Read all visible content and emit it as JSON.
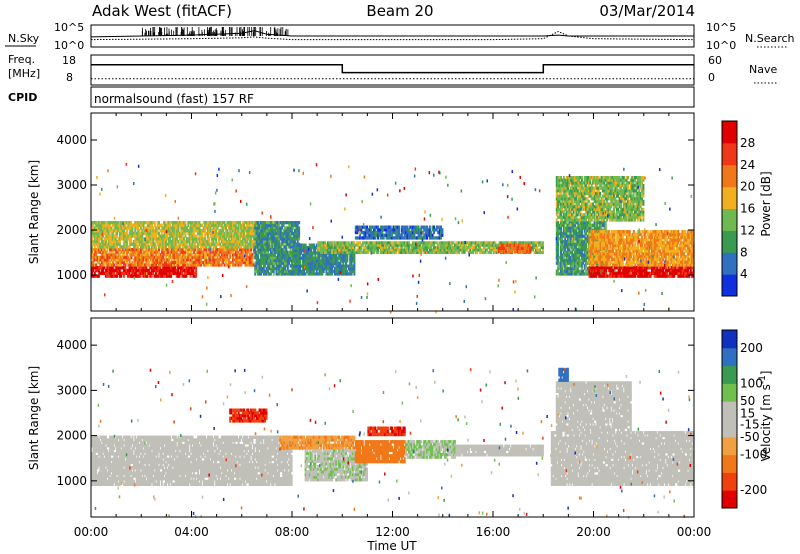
{
  "header": {
    "station": "Adak West (fitACF)",
    "beam": "Beam 20",
    "date": "03/Mar/2014"
  },
  "left_labels": {
    "nsky": "N.Sky",
    "freq_line1": "Freq.",
    "freq_line2": "[MHz]",
    "cpid": "CPID"
  },
  "right_labels": {
    "nsearch": "N.Search",
    "nave": "Nave"
  },
  "cpid_text": "normalsound (fast) 157 RF",
  "x_axis": {
    "label": "Time UT",
    "ticks": [
      "00:00",
      "04:00",
      "08:00",
      "12:00",
      "16:00",
      "20:00",
      "00:00"
    ]
  },
  "colors": {
    "ground_scatter": "#c0c0b8",
    "power_scale": [
      "#1030e0",
      "#3070c0",
      "#3a9a50",
      "#70b850",
      "#f0b020",
      "#f07818",
      "#f03818",
      "#e00000"
    ],
    "velocity_scale": [
      "#e00000",
      "#f04010",
      "#f07818",
      "#f0a040",
      "#c0c0b8",
      "#c0c0b8",
      "#70c050",
      "#3a9a50",
      "#3070c0",
      "#1030c0"
    ]
  },
  "chart_data": [
    {
      "type": "line",
      "panel": "noise",
      "left_axis": {
        "label": "N.Sky",
        "ticks": [
          "10^5",
          "10^0"
        ]
      },
      "right_axis": {
        "label": "N.Search",
        "ticks": [
          "10^5",
          "10^0"
        ]
      },
      "x": [
        0,
        2,
        4,
        6,
        6.5,
        7,
        8,
        10,
        12,
        14,
        16,
        18,
        18.6,
        19,
        20,
        22,
        24
      ],
      "series": [
        {
          "name": "N.Sky",
          "values": [
            0.45,
            0.5,
            0.55,
            0.65,
            0.8,
            0.6,
            0.5,
            0.5,
            0.5,
            0.5,
            0.5,
            0.5,
            0.55,
            0.5,
            0.5,
            0.5,
            0.5
          ]
        },
        {
          "name": "N.Search",
          "values": [
            0.3,
            0.32,
            0.35,
            0.4,
            0.45,
            0.38,
            0.3,
            0.3,
            0.3,
            0.3,
            0.3,
            0.35,
            0.75,
            0.5,
            0.35,
            0.32,
            0.3
          ]
        }
      ]
    },
    {
      "type": "line",
      "panel": "frequency",
      "left_axis": {
        "label": "Freq. [MHz]",
        "ticks": [
          18,
          8
        ]
      },
      "right_axis": {
        "label": "Nave",
        "ticks": [
          60,
          0
        ]
      },
      "x": [
        0,
        10,
        10,
        18,
        18,
        24
      ],
      "series": [
        {
          "name": "Freq.",
          "values": [
            15,
            15,
            12,
            12,
            15,
            15
          ]
        },
        {
          "name": "Nave",
          "values": [
            10,
            10,
            10,
            10,
            10,
            10
          ]
        }
      ]
    },
    {
      "type": "heatmap",
      "panel": "power",
      "ylabel": "Slant Range [km]",
      "xlabel": "Time UT",
      "xlim": [
        0,
        24
      ],
      "ylim": [
        200,
        4600
      ],
      "yticks": [
        1000,
        2000,
        3000,
        4000
      ],
      "colorbar": {
        "label": "Power [dB]",
        "ticks": [
          4,
          8,
          12,
          16,
          20,
          24,
          28
        ],
        "range": [
          0,
          32
        ]
      },
      "regions": [
        {
          "t": [
            0,
            4.2
          ],
          "r": [
            950,
            1200
          ],
          "value": 30
        },
        {
          "t": [
            0,
            6.5
          ],
          "r": [
            1200,
            1600
          ],
          "value": 22
        },
        {
          "t": [
            0,
            7.5
          ],
          "r": [
            1600,
            2200
          ],
          "value": 16
        },
        {
          "t": [
            6.5,
            8.3
          ],
          "r": [
            1000,
            2200
          ],
          "value": 9
        },
        {
          "t": [
            8.0,
            10.5
          ],
          "r": [
            1000,
            1700
          ],
          "value": 8
        },
        {
          "t": [
            9.0,
            18.0
          ],
          "r": [
            1480,
            1750
          ],
          "value": 14
        },
        {
          "t": [
            10.5,
            14.0
          ],
          "r": [
            1800,
            2100
          ],
          "value": 6
        },
        {
          "t": [
            16.2,
            17.5
          ],
          "r": [
            1500,
            1700
          ],
          "value": 24
        },
        {
          "t": [
            18.5,
            20.5
          ],
          "r": [
            1000,
            2200
          ],
          "value": 10
        },
        {
          "t": [
            18.5,
            22.0
          ],
          "r": [
            2200,
            3200
          ],
          "value": 14
        },
        {
          "t": [
            19.8,
            24
          ],
          "r": [
            950,
            1200
          ],
          "value": 30
        },
        {
          "t": [
            19.8,
            24
          ],
          "r": [
            1200,
            2000
          ],
          "value": 20
        }
      ]
    },
    {
      "type": "heatmap",
      "panel": "velocity",
      "ylabel": "Slant Range [km]",
      "xlabel": "Time UT",
      "xlim": [
        0,
        24
      ],
      "ylim": [
        200,
        4600
      ],
      "yticks": [
        1000,
        2000,
        3000,
        4000
      ],
      "colorbar": {
        "label": "Velocity [m s^-1]",
        "ticks": [
          -200,
          -100,
          -50,
          -15,
          15,
          50,
          100,
          200
        ],
        "range": [
          -250,
          250
        ]
      },
      "regions": [
        {
          "t": [
            0,
            8.0
          ],
          "r": [
            900,
            2000
          ],
          "value": 0,
          "ground_scatter": true
        },
        {
          "t": [
            5.5,
            7.0
          ],
          "r": [
            2300,
            2600
          ],
          "value": -200
        },
        {
          "t": [
            7.5,
            10.5
          ],
          "r": [
            1700,
            2000
          ],
          "value": -90
        },
        {
          "t": [
            8.5,
            11.0
          ],
          "r": [
            1000,
            1700
          ],
          "value": 40
        },
        {
          "t": [
            10.5,
            12.5
          ],
          "r": [
            1400,
            1900
          ],
          "value": -120
        },
        {
          "t": [
            11.0,
            12.5
          ],
          "r": [
            2000,
            2200
          ],
          "value": -200
        },
        {
          "t": [
            12.5,
            14.5
          ],
          "r": [
            1500,
            1900
          ],
          "value": 50
        },
        {
          "t": [
            14.5,
            18.0
          ],
          "r": [
            1550,
            1800
          ],
          "value": 0,
          "ground_scatter": true
        },
        {
          "t": [
            18.3,
            24
          ],
          "r": [
            900,
            2100
          ],
          "value": 0,
          "ground_scatter": true
        },
        {
          "t": [
            18.5,
            21.5
          ],
          "r": [
            2100,
            3200
          ],
          "value": 30
        },
        {
          "t": [
            18.6,
            19.0
          ],
          "r": [
            3200,
            3500
          ],
          "value": 180
        }
      ]
    }
  ]
}
